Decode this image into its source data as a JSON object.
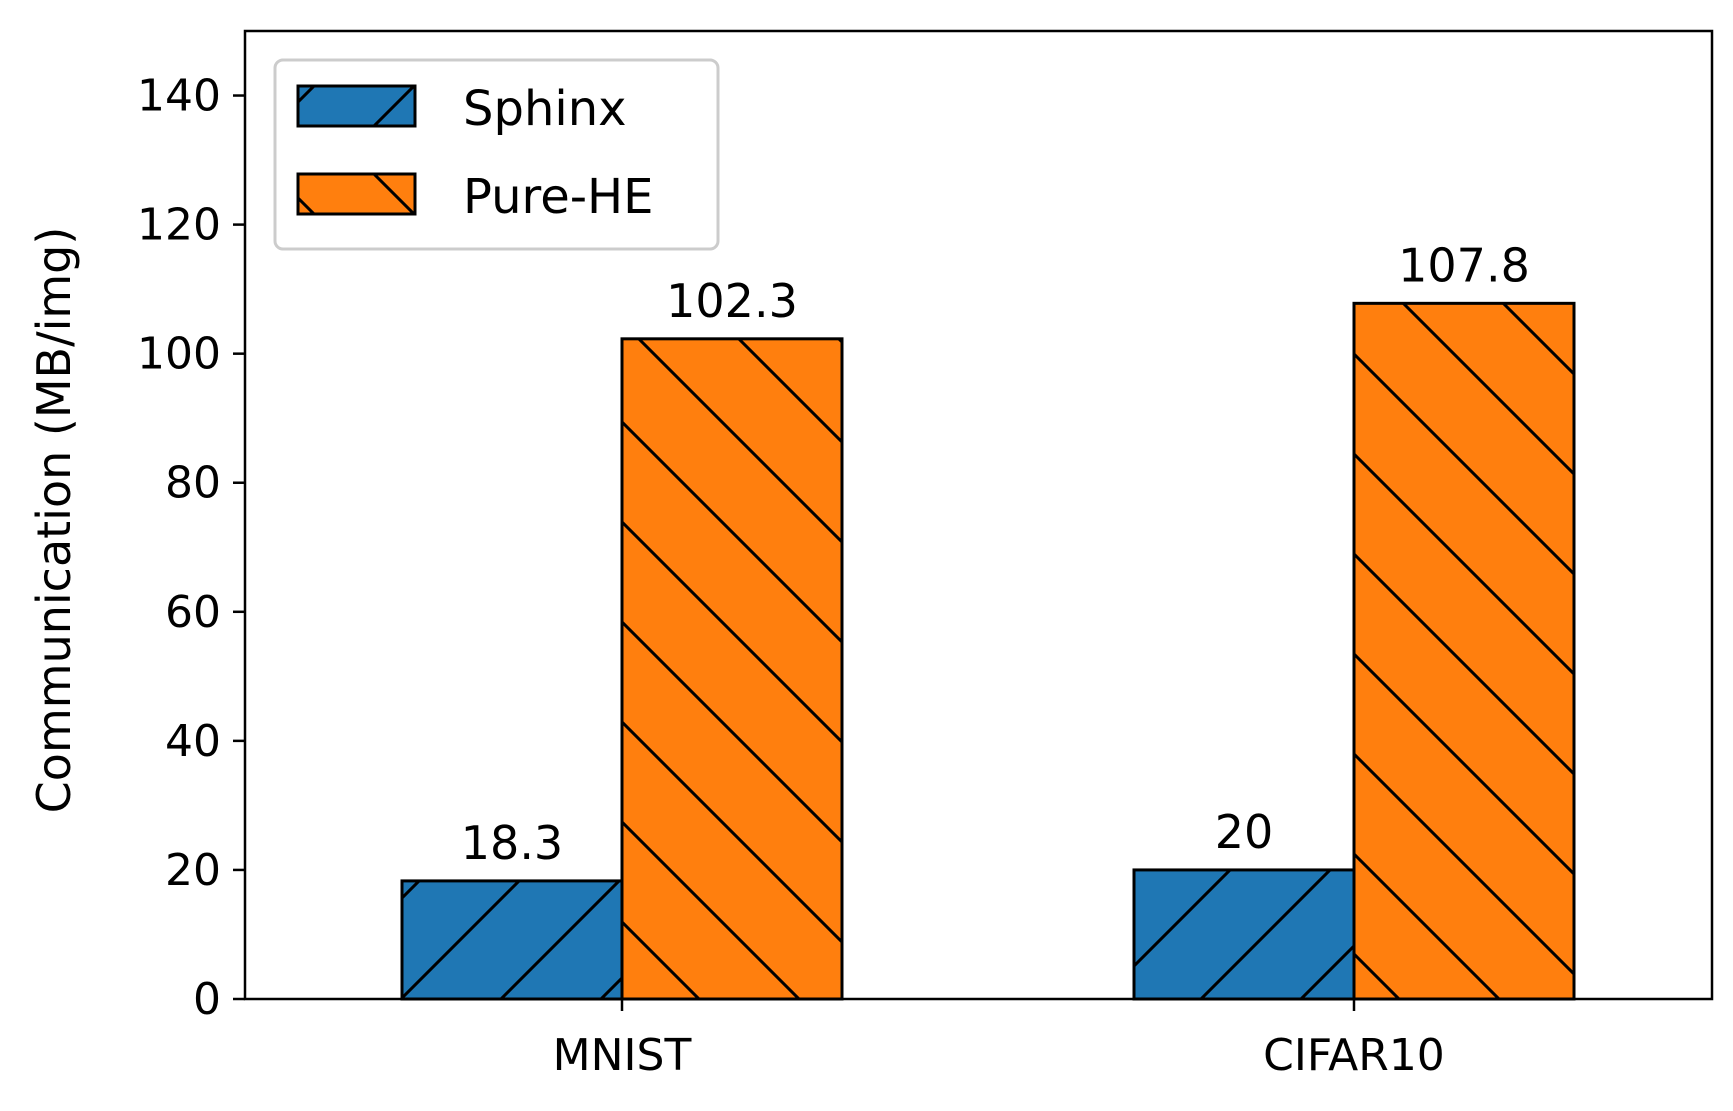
{
  "chart_data": {
    "type": "bar",
    "categories": [
      "MNIST",
      "CIFAR10"
    ],
    "series": [
      {
        "name": "Sphinx",
        "values": [
          18.3,
          20
        ],
        "color": "#1f77b4",
        "hatch": "forward-diagonal"
      },
      {
        "name": "Pure-HE",
        "values": [
          102.3,
          107.8
        ],
        "color": "#ff7f0e",
        "hatch": "backward-diagonal"
      }
    ],
    "value_labels": [
      [
        "18.3",
        "20"
      ],
      [
        "102.3",
        "107.8"
      ]
    ],
    "ylabel": "Communication (MB/img)",
    "xlabel": "",
    "ylim": [
      0,
      150
    ],
    "yticks": [
      0,
      20,
      40,
      60,
      80,
      100,
      120,
      140
    ],
    "grid": false,
    "legend_position": "top-left"
  }
}
